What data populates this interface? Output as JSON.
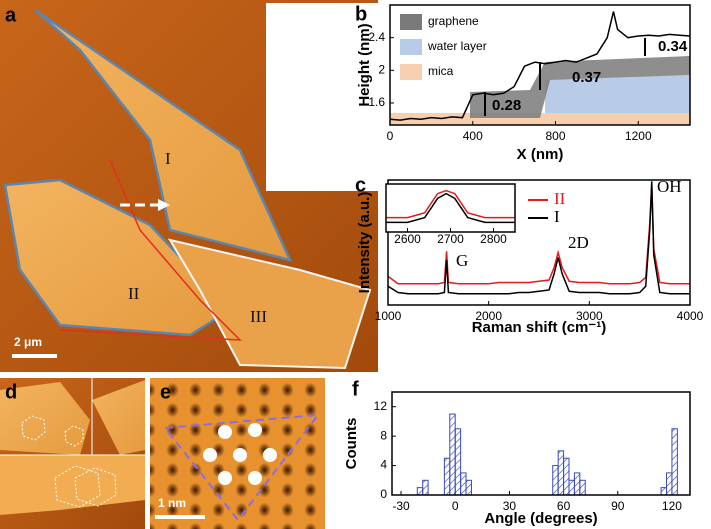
{
  "chart_data": [
    {
      "type": "line",
      "panel": "b",
      "xlabel": "X (nm)",
      "ylabel": "Height (nm)",
      "x": [
        0,
        50,
        100,
        150,
        200,
        250,
        300,
        350,
        400,
        450,
        500,
        550,
        600,
        650,
        700,
        750,
        800,
        850,
        900,
        950,
        1000,
        1050,
        1080,
        1100,
        1150,
        1200,
        1250,
        1300,
        1350,
        1400,
        1450
      ],
      "values": [
        1.4,
        1.39,
        1.41,
        1.4,
        1.42,
        1.41,
        1.43,
        1.42,
        1.7,
        1.72,
        1.7,
        1.72,
        1.8,
        2.05,
        2.1,
        2.08,
        2.1,
        2.12,
        2.1,
        2.15,
        2.2,
        2.4,
        2.72,
        2.5,
        2.4,
        2.42,
        2.43,
        2.42,
        2.44,
        2.43,
        2.42
      ],
      "color": "#000000",
      "xlim": [
        0,
        1450
      ],
      "ylim": [
        1.33,
        2.8
      ],
      "xticks": [
        0,
        400,
        800,
        1200
      ],
      "yticks": [
        1.6,
        2.0,
        2.4
      ],
      "legend": [
        {
          "name": "graphene",
          "color": "#7a7a7a"
        },
        {
          "name": "water layer",
          "color": "#b8cce8"
        },
        {
          "name": "mica",
          "color": "#f6cfb0"
        }
      ],
      "annotations": [
        "0.28",
        "0.37",
        "0.34"
      ]
    },
    {
      "type": "line",
      "panel": "c",
      "xlabel": "Raman shift (cm⁻¹)",
      "ylabel": "Intensity (a.u.)",
      "x": [
        1000,
        1100,
        1200,
        1300,
        1400,
        1500,
        1560,
        1582,
        1600,
        1700,
        1800,
        1900,
        2000,
        2100,
        2200,
        2300,
        2400,
        2500,
        2600,
        2650,
        2690,
        2730,
        2800,
        2900,
        3000,
        3100,
        3200,
        3300,
        3400,
        3500,
        3560,
        3600,
        3620,
        3640,
        3700,
        3800,
        3900,
        4000
      ],
      "series": [
        {
          "name": "II",
          "color": "#e8191a",
          "values": [
            2.3,
            1.7,
            1.7,
            1.7,
            1.7,
            1.7,
            1.8,
            4.3,
            1.8,
            1.7,
            1.7,
            1.7,
            1.7,
            1.8,
            1.8,
            1.8,
            1.8,
            1.9,
            2.0,
            3.0,
            4.2,
            3.0,
            1.9,
            1.8,
            1.8,
            1.8,
            1.7,
            1.7,
            1.7,
            1.8,
            2.2,
            6.5,
            9.6,
            4.5,
            1.8,
            1.7,
            1.7,
            1.7
          ]
        },
        {
          "name": "I",
          "color": "#000000",
          "values": [
            1.5,
            1.0,
            0.9,
            0.9,
            0.9,
            0.9,
            1.0,
            3.6,
            1.0,
            0.9,
            0.9,
            0.9,
            0.9,
            0.9,
            0.9,
            1.0,
            1.0,
            1.1,
            1.2,
            2.5,
            3.8,
            2.5,
            1.1,
            1.0,
            1.0,
            1.0,
            0.9,
            0.9,
            0.9,
            1.0,
            1.5,
            6,
            9.9,
            4,
            1,
            0.9,
            0.9,
            0.9
          ]
        }
      ],
      "xlim": [
        1000,
        4000
      ],
      "ylim": [
        0,
        10
      ],
      "xticks": [
        1000,
        2000,
        3000,
        4000
      ],
      "annotations": [
        "G",
        "2D",
        "OH"
      ]
    },
    {
      "type": "line",
      "x": [
        2550,
        2600,
        2640,
        2670,
        2690,
        2710,
        2740,
        2780,
        2850
      ],
      "series": [
        {
          "color": "#e8191a",
          "values": [
            1.5,
            1.5,
            2,
            4,
            4.3,
            4,
            2,
            1.5,
            1.5
          ]
        },
        {
          "color": "#000000",
          "values": [
            1,
            1,
            1.5,
            3.5,
            4,
            3.5,
            1.5,
            1,
            1
          ]
        }
      ],
      "xlim": [
        2550,
        2850
      ],
      "ylim": [
        0,
        5
      ],
      "xticks": [
        2600,
        2700,
        2800
      ]
    },
    {
      "type": "histogram",
      "panel": "f",
      "xlabel": "Angle (degrees)",
      "ylabel": "Counts",
      "color": "#3a49b8",
      "bins": [
        -27,
        -24,
        -21,
        -18,
        -15,
        -12,
        -9,
        -6,
        -3,
        0,
        3,
        6,
        9,
        12,
        15,
        18,
        21,
        24,
        27,
        30,
        33,
        36,
        39,
        42,
        45,
        48,
        51,
        54,
        57,
        60,
        63,
        66,
        69,
        72,
        75,
        78,
        81,
        84,
        87,
        90,
        93,
        96,
        99,
        102,
        105,
        108,
        111,
        114,
        117,
        120,
        123,
        126
      ],
      "values": [
        0,
        0,
        1,
        2,
        0,
        0,
        0,
        5,
        11,
        9,
        3,
        2,
        0,
        0,
        0,
        0,
        0,
        0,
        0,
        0,
        0,
        0,
        0,
        0,
        0,
        0,
        0,
        4,
        6,
        5,
        2,
        3,
        2,
        0,
        0,
        0,
        0,
        0,
        0,
        0,
        0,
        0,
        0,
        0,
        0,
        0,
        0,
        1,
        3,
        9,
        0
      ],
      "xlim": [
        -35,
        130
      ],
      "ylim": [
        0,
        14
      ],
      "xticks": [
        -30,
        0,
        30,
        60,
        90,
        120
      ],
      "yticks": [
        0,
        4,
        8,
        12
      ]
    }
  ],
  "images": {
    "a": {
      "panel": "a",
      "labels": [
        "I",
        "II",
        "III"
      ],
      "scale": "2 μm"
    },
    "d": {
      "panel": "d"
    },
    "e": {
      "panel": "e",
      "scale": "1 nm"
    }
  }
}
